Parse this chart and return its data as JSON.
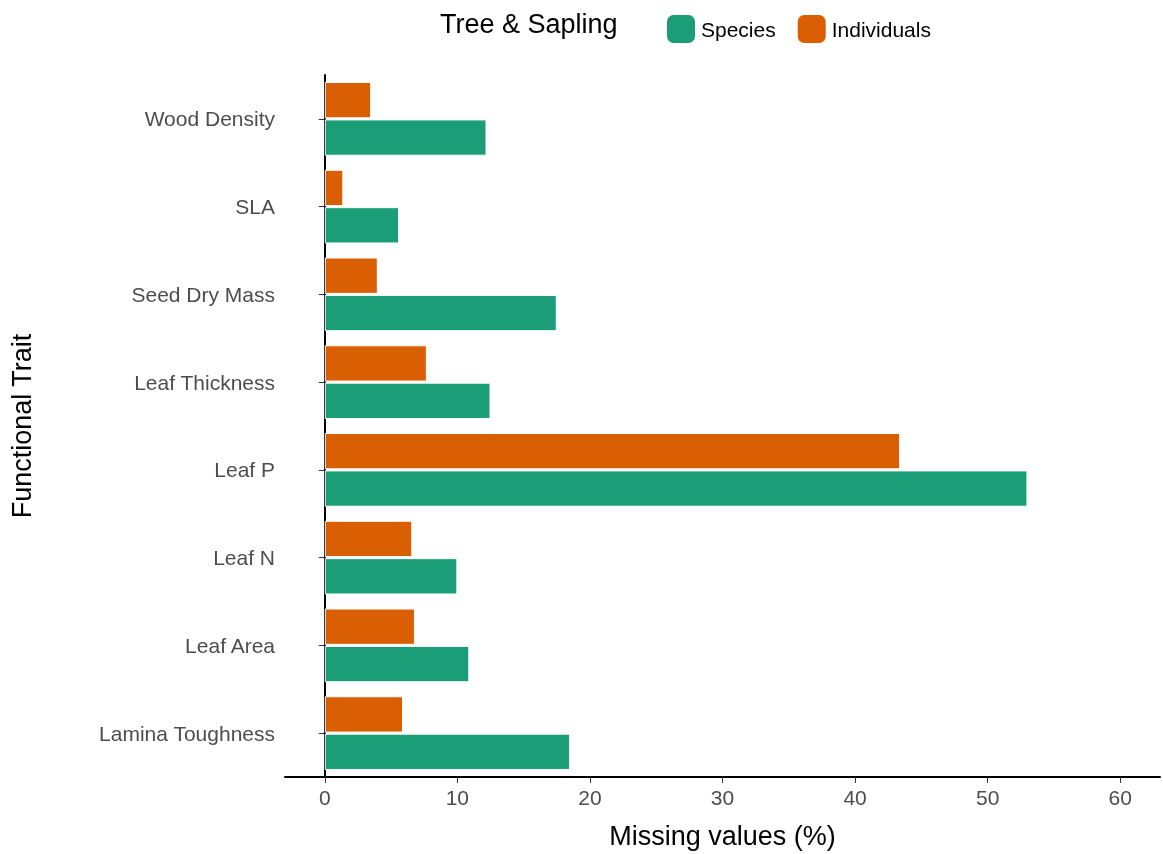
{
  "chart_data": {
    "type": "bar",
    "orientation": "horizontal",
    "xlabel": "Missing values (%)",
    "ylabel": "Functional Trait",
    "legend_title": "Tree & Sapling",
    "legend": "top",
    "grid": false,
    "categories": [
      "Wood Density",
      "SLA",
      "Seed Dry Mass",
      "Leaf Thickness",
      "Leaf P",
      "Leaf N",
      "Leaf Area",
      "Lamina Toughness"
    ],
    "xlim": [
      -3,
      63
    ],
    "xticks": [
      0,
      10,
      20,
      30,
      40,
      50,
      60
    ],
    "series": [
      {
        "name": "Species",
        "color": "#1b9e77",
        "values": [
          12.2,
          5.6,
          17.5,
          12.5,
          53,
          10,
          10.9,
          18.5
        ]
      },
      {
        "name": "Individuals",
        "color": "#d95f02",
        "values": [
          3.5,
          1.4,
          4,
          7.7,
          43.4,
          6.6,
          6.8,
          5.9
        ]
      }
    ]
  }
}
